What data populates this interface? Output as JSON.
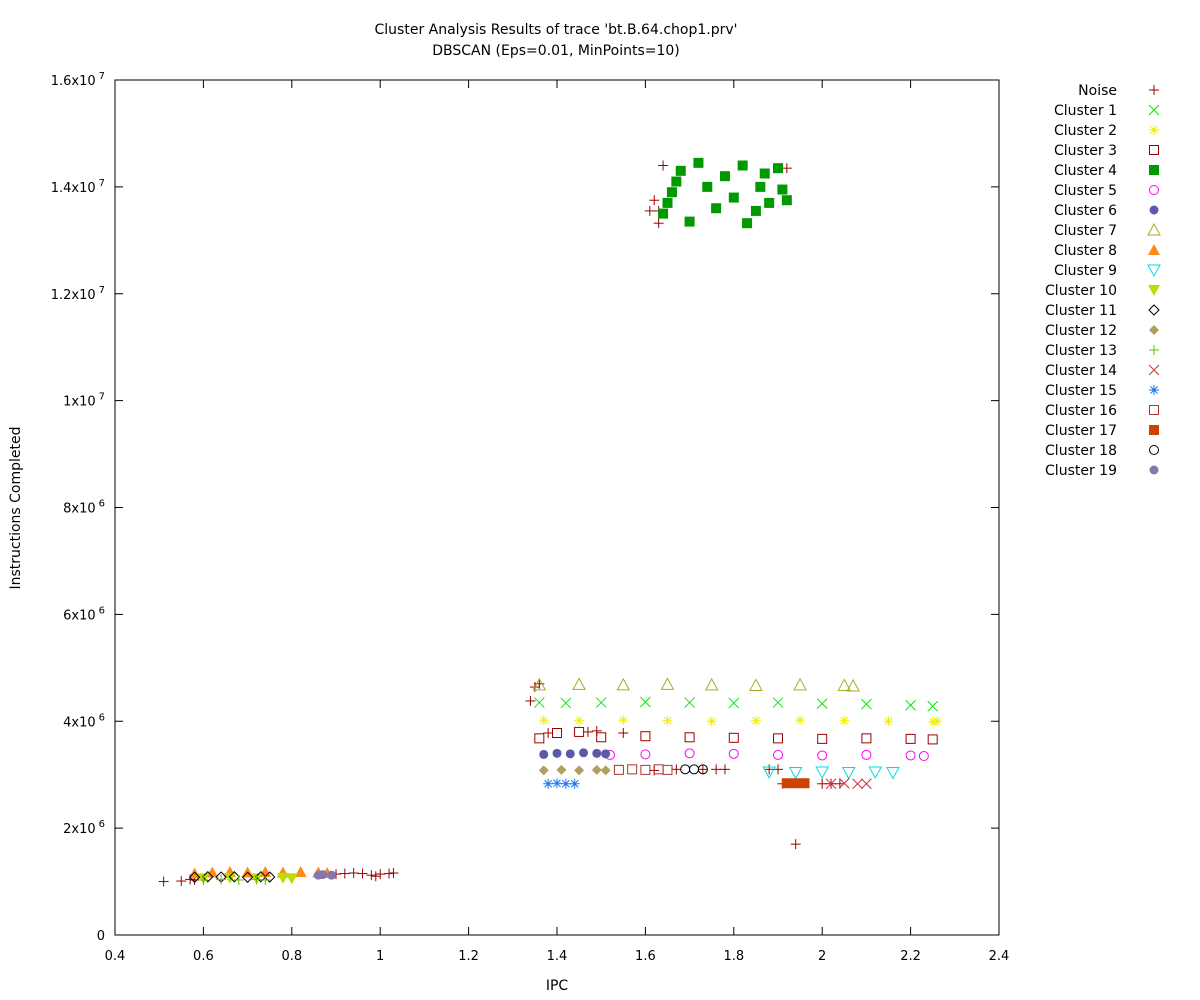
{
  "chart_data": {
    "type": "scatter",
    "title": "Cluster Analysis Results of trace 'bt.B.64.chop1.prv'",
    "subtitle": "DBSCAN (Eps=0.01, MinPoints=10)",
    "xlabel": "IPC",
    "ylabel": "Instructions Completed",
    "xlim": [
      0.4,
      2.4
    ],
    "ylim": [
      0,
      16000000
    ],
    "legend_position": "outside-right",
    "grid": false,
    "x_ticks": [
      {
        "value": 0.4,
        "label": "0.4"
      },
      {
        "value": 0.6,
        "label": "0.6"
      },
      {
        "value": 0.8,
        "label": "0.8"
      },
      {
        "value": 1.0,
        "label": "1"
      },
      {
        "value": 1.2,
        "label": "1.2"
      },
      {
        "value": 1.4,
        "label": "1.4"
      },
      {
        "value": 1.6,
        "label": "1.6"
      },
      {
        "value": 1.8,
        "label": "1.8"
      },
      {
        "value": 2.0,
        "label": "2"
      },
      {
        "value": 2.2,
        "label": "2.2"
      },
      {
        "value": 2.4,
        "label": "2.4"
      }
    ],
    "y_ticks": [
      {
        "value": 0,
        "mantissa": "0",
        "exp": ""
      },
      {
        "value": 2000000,
        "mantissa": "2x10",
        "exp": "6"
      },
      {
        "value": 4000000,
        "mantissa": "4x10",
        "exp": "6"
      },
      {
        "value": 6000000,
        "mantissa": "6x10",
        "exp": "6"
      },
      {
        "value": 8000000,
        "mantissa": "8x10",
        "exp": "6"
      },
      {
        "value": 10000000,
        "mantissa": "1x10",
        "exp": "7"
      },
      {
        "value": 12000000,
        "mantissa": "1.2x10",
        "exp": "7"
      },
      {
        "value": 14000000,
        "mantissa": "1.4x10",
        "exp": "7"
      },
      {
        "value": 16000000,
        "mantissa": "1.6x10",
        "exp": "7"
      }
    ],
    "series": [
      {
        "name": "Noise",
        "marker": "plus",
        "color": "#9b0000",
        "points": [
          [
            0.51,
            1000000
          ],
          [
            0.55,
            1010000
          ],
          [
            0.57,
            1040000
          ],
          [
            0.58,
            1030000
          ],
          [
            0.9,
            1140000
          ],
          [
            0.92,
            1150000
          ],
          [
            0.94,
            1160000
          ],
          [
            0.96,
            1150000
          ],
          [
            0.98,
            1120000
          ],
          [
            0.99,
            1100000
          ],
          [
            1.0,
            1140000
          ],
          [
            1.02,
            1150000
          ],
          [
            1.03,
            1160000
          ],
          [
            1.34,
            4380000
          ],
          [
            1.35,
            4640000
          ],
          [
            1.36,
            4700000
          ],
          [
            1.38,
            3780000
          ],
          [
            1.47,
            3800000
          ],
          [
            1.49,
            3820000
          ],
          [
            1.55,
            3780000
          ],
          [
            1.62,
            3080000
          ],
          [
            1.67,
            3100000
          ],
          [
            1.73,
            3100000
          ],
          [
            1.76,
            3100000
          ],
          [
            1.78,
            3100000
          ],
          [
            1.88,
            3100000
          ],
          [
            1.9,
            3100000
          ],
          [
            1.91,
            2830000
          ],
          [
            1.94,
            1700000
          ],
          [
            2.0,
            2830000
          ],
          [
            2.02,
            2830000
          ],
          [
            2.04,
            2830000
          ],
          [
            1.61,
            13550000
          ],
          [
            1.62,
            13750000
          ],
          [
            1.63,
            13550000
          ],
          [
            1.63,
            13320000
          ],
          [
            1.64,
            14400000
          ],
          [
            1.92,
            14350000
          ]
        ]
      },
      {
        "name": "Cluster 1",
        "marker": "x",
        "color": "#00ee00",
        "points": [
          [
            1.36,
            4350000
          ],
          [
            1.42,
            4340000
          ],
          [
            1.5,
            4350000
          ],
          [
            1.6,
            4360000
          ],
          [
            1.7,
            4350000
          ],
          [
            1.8,
            4340000
          ],
          [
            1.9,
            4350000
          ],
          [
            2.0,
            4330000
          ],
          [
            2.1,
            4320000
          ],
          [
            2.2,
            4300000
          ],
          [
            2.25,
            4280000
          ]
        ]
      },
      {
        "name": "Cluster 2",
        "marker": "star",
        "color": "#eeee00",
        "points": [
          [
            1.37,
            4020000
          ],
          [
            1.45,
            4010000
          ],
          [
            1.55,
            4020000
          ],
          [
            1.65,
            4010000
          ],
          [
            1.75,
            4000000
          ],
          [
            1.85,
            4010000
          ],
          [
            1.95,
            4020000
          ],
          [
            2.05,
            4010000
          ],
          [
            2.15,
            4000000
          ],
          [
            2.25,
            3990000
          ],
          [
            2.26,
            4000000
          ]
        ]
      },
      {
        "name": "Cluster 3",
        "marker": "square-open",
        "color": "#9b0000",
        "points": [
          [
            1.36,
            3680000
          ],
          [
            1.4,
            3780000
          ],
          [
            1.45,
            3800000
          ],
          [
            1.5,
            3700000
          ],
          [
            1.6,
            3720000
          ],
          [
            1.7,
            3700000
          ],
          [
            1.8,
            3690000
          ],
          [
            1.9,
            3680000
          ],
          [
            2.0,
            3670000
          ],
          [
            2.1,
            3680000
          ],
          [
            2.2,
            3670000
          ],
          [
            2.25,
            3660000
          ]
        ]
      },
      {
        "name": "Cluster 4",
        "marker": "square",
        "color": "#009900",
        "points": [
          [
            1.64,
            13500000
          ],
          [
            1.65,
            13700000
          ],
          [
            1.66,
            13900000
          ],
          [
            1.67,
            14100000
          ],
          [
            1.68,
            14300000
          ],
          [
            1.7,
            13350000
          ],
          [
            1.72,
            14450000
          ],
          [
            1.74,
            14000000
          ],
          [
            1.76,
            13600000
          ],
          [
            1.78,
            14200000
          ],
          [
            1.8,
            13800000
          ],
          [
            1.82,
            14400000
          ],
          [
            1.83,
            13320000
          ],
          [
            1.85,
            13550000
          ],
          [
            1.86,
            14000000
          ],
          [
            1.87,
            14250000
          ],
          [
            1.88,
            13700000
          ],
          [
            1.9,
            14350000
          ],
          [
            1.91,
            13950000
          ],
          [
            1.92,
            13750000
          ]
        ]
      },
      {
        "name": "Cluster 5",
        "marker": "circle-open",
        "color": "#ff00ff",
        "points": [
          [
            1.52,
            3370000
          ],
          [
            1.6,
            3380000
          ],
          [
            1.7,
            3400000
          ],
          [
            1.8,
            3390000
          ],
          [
            1.9,
            3370000
          ],
          [
            2.0,
            3360000
          ],
          [
            2.1,
            3370000
          ],
          [
            2.2,
            3360000
          ],
          [
            2.23,
            3350000
          ]
        ]
      },
      {
        "name": "Cluster 6",
        "marker": "circle",
        "color": "#5a5aa8",
        "points": [
          [
            1.37,
            3380000
          ],
          [
            1.4,
            3400000
          ],
          [
            1.43,
            3390000
          ],
          [
            1.46,
            3410000
          ],
          [
            1.49,
            3400000
          ],
          [
            1.51,
            3390000
          ]
        ]
      },
      {
        "name": "Cluster 7",
        "marker": "triangle-open",
        "color": "#aaaa22",
        "points": [
          [
            1.36,
            4680000
          ],
          [
            1.45,
            4690000
          ],
          [
            1.55,
            4680000
          ],
          [
            1.65,
            4690000
          ],
          [
            1.75,
            4680000
          ],
          [
            1.85,
            4670000
          ],
          [
            1.95,
            4680000
          ],
          [
            2.05,
            4670000
          ],
          [
            2.07,
            4660000
          ]
        ]
      },
      {
        "name": "Cluster 8",
        "marker": "triangle",
        "color": "#ff8c1a",
        "points": [
          [
            0.58,
            1150000
          ],
          [
            0.62,
            1170000
          ],
          [
            0.66,
            1180000
          ],
          [
            0.7,
            1170000
          ],
          [
            0.74,
            1180000
          ],
          [
            0.78,
            1170000
          ],
          [
            0.82,
            1180000
          ],
          [
            0.86,
            1170000
          ],
          [
            0.88,
            1160000
          ]
        ]
      },
      {
        "name": "Cluster 9",
        "marker": "triangle-down-open",
        "color": "#00dddd",
        "points": [
          [
            1.88,
            3050000
          ],
          [
            1.94,
            3040000
          ],
          [
            2.0,
            3050000
          ],
          [
            2.06,
            3040000
          ],
          [
            2.12,
            3050000
          ],
          [
            2.16,
            3040000
          ]
        ]
      },
      {
        "name": "Cluster 10",
        "marker": "triangle-down",
        "color": "#bbdd00",
        "points": [
          [
            0.6,
            1060000
          ],
          [
            0.66,
            1070000
          ],
          [
            0.72,
            1060000
          ],
          [
            0.78,
            1070000
          ],
          [
            0.8,
            1060000
          ]
        ]
      },
      {
        "name": "Cluster 11",
        "marker": "diamond-open",
        "color": "#000000",
        "points": [
          [
            0.58,
            1080000
          ],
          [
            0.61,
            1090000
          ],
          [
            0.64,
            1085000
          ],
          [
            0.67,
            1090000
          ],
          [
            0.7,
            1080000
          ],
          [
            0.73,
            1090000
          ],
          [
            0.75,
            1085000
          ]
        ]
      },
      {
        "name": "Cluster 12",
        "marker": "diamond",
        "color": "#b0a060",
        "points": [
          [
            1.37,
            3080000
          ],
          [
            1.41,
            3090000
          ],
          [
            1.45,
            3080000
          ],
          [
            1.49,
            3090000
          ],
          [
            1.51,
            3080000
          ]
        ]
      },
      {
        "name": "Cluster 13",
        "marker": "plus",
        "color": "#66bb00",
        "points": [
          [
            0.6,
            1030000
          ],
          [
            0.64,
            1040000
          ],
          [
            0.68,
            1030000
          ],
          [
            0.72,
            1040000
          ],
          [
            0.74,
            1030000
          ]
        ]
      },
      {
        "name": "Cluster 14",
        "marker": "x",
        "color": "#cc3344",
        "points": [
          [
            2.02,
            2830000
          ],
          [
            2.05,
            2840000
          ],
          [
            2.08,
            2830000
          ],
          [
            2.1,
            2830000
          ]
        ]
      },
      {
        "name": "Cluster 15",
        "marker": "star",
        "color": "#1177ee",
        "points": [
          [
            1.38,
            2830000
          ],
          [
            1.4,
            2840000
          ],
          [
            1.42,
            2830000
          ],
          [
            1.44,
            2830000
          ]
        ]
      },
      {
        "name": "Cluster 16",
        "marker": "square-open",
        "color": "#aa3333",
        "points": [
          [
            1.54,
            3090000
          ],
          [
            1.57,
            3100000
          ],
          [
            1.6,
            3090000
          ],
          [
            1.63,
            3100000
          ],
          [
            1.65,
            3090000
          ]
        ]
      },
      {
        "name": "Cluster 17",
        "marker": "square",
        "color": "#cc4400",
        "points": [
          [
            1.92,
            2840000
          ],
          [
            1.94,
            2840000
          ],
          [
            1.96,
            2840000
          ]
        ]
      },
      {
        "name": "Cluster 18",
        "marker": "circle-open",
        "color": "#000000",
        "points": [
          [
            1.69,
            3100000
          ],
          [
            1.71,
            3100000
          ],
          [
            1.73,
            3100000
          ]
        ]
      },
      {
        "name": "Cluster 19",
        "marker": "circle",
        "color": "#8877aa",
        "points": [
          [
            0.86,
            1120000
          ],
          [
            0.87,
            1130000
          ],
          [
            0.89,
            1120000
          ]
        ]
      }
    ]
  }
}
